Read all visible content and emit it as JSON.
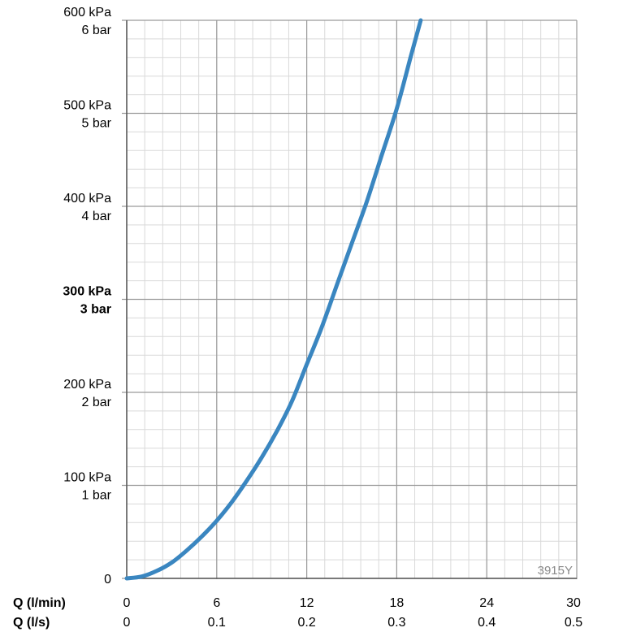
{
  "chart_data": {
    "type": "line",
    "title": "",
    "watermark": "3915Y",
    "x_axis": {
      "range": [
        0,
        30
      ],
      "major_step": 6,
      "minor_step": 1.2,
      "label_primary": "Q (l/min)",
      "label_secondary": "Q (l/s)",
      "ticks_primary": [
        "0",
        "6",
        "12",
        "18",
        "24",
        "30"
      ],
      "ticks_secondary": [
        "0",
        "0.1",
        "0.2",
        "0.3",
        "0.4",
        "0.5"
      ]
    },
    "y_axis": {
      "range": [
        0,
        600
      ],
      "unit": "kPa",
      "major_step": 100,
      "minor_step": 20,
      "ticks": [
        {
          "value": 0,
          "line1": "0",
          "line2": "",
          "bold": false
        },
        {
          "value": 100,
          "line1": "100 kPa",
          "line2": "1 bar",
          "bold": false
        },
        {
          "value": 200,
          "line1": "200 kPa",
          "line2": "2 bar",
          "bold": false
        },
        {
          "value": 300,
          "line1": "300 kPa",
          "line2": "3 bar",
          "bold": true
        },
        {
          "value": 400,
          "line1": "400 kPa",
          "line2": "4 bar",
          "bold": false
        },
        {
          "value": 500,
          "line1": "500 kPa",
          "line2": "5 bar",
          "bold": false
        },
        {
          "value": 600,
          "line1": "600 kPa",
          "line2": "6 bar",
          "bold": false
        }
      ]
    },
    "grid": true,
    "series": [
      {
        "color": "#3a86c0",
        "points": [
          [
            0,
            0
          ],
          [
            1,
            2
          ],
          [
            2,
            8
          ],
          [
            3,
            17
          ],
          [
            4,
            30
          ],
          [
            5,
            45
          ],
          [
            6,
            62
          ],
          [
            7,
            82
          ],
          [
            8,
            105
          ],
          [
            9,
            130
          ],
          [
            10,
            158
          ],
          [
            11,
            190
          ],
          [
            12,
            230
          ],
          [
            13,
            270
          ],
          [
            14,
            315
          ],
          [
            15,
            360
          ],
          [
            16,
            405
          ],
          [
            17,
            455
          ],
          [
            18,
            505
          ],
          [
            19,
            565
          ],
          [
            19.6,
            600
          ]
        ]
      }
    ]
  }
}
